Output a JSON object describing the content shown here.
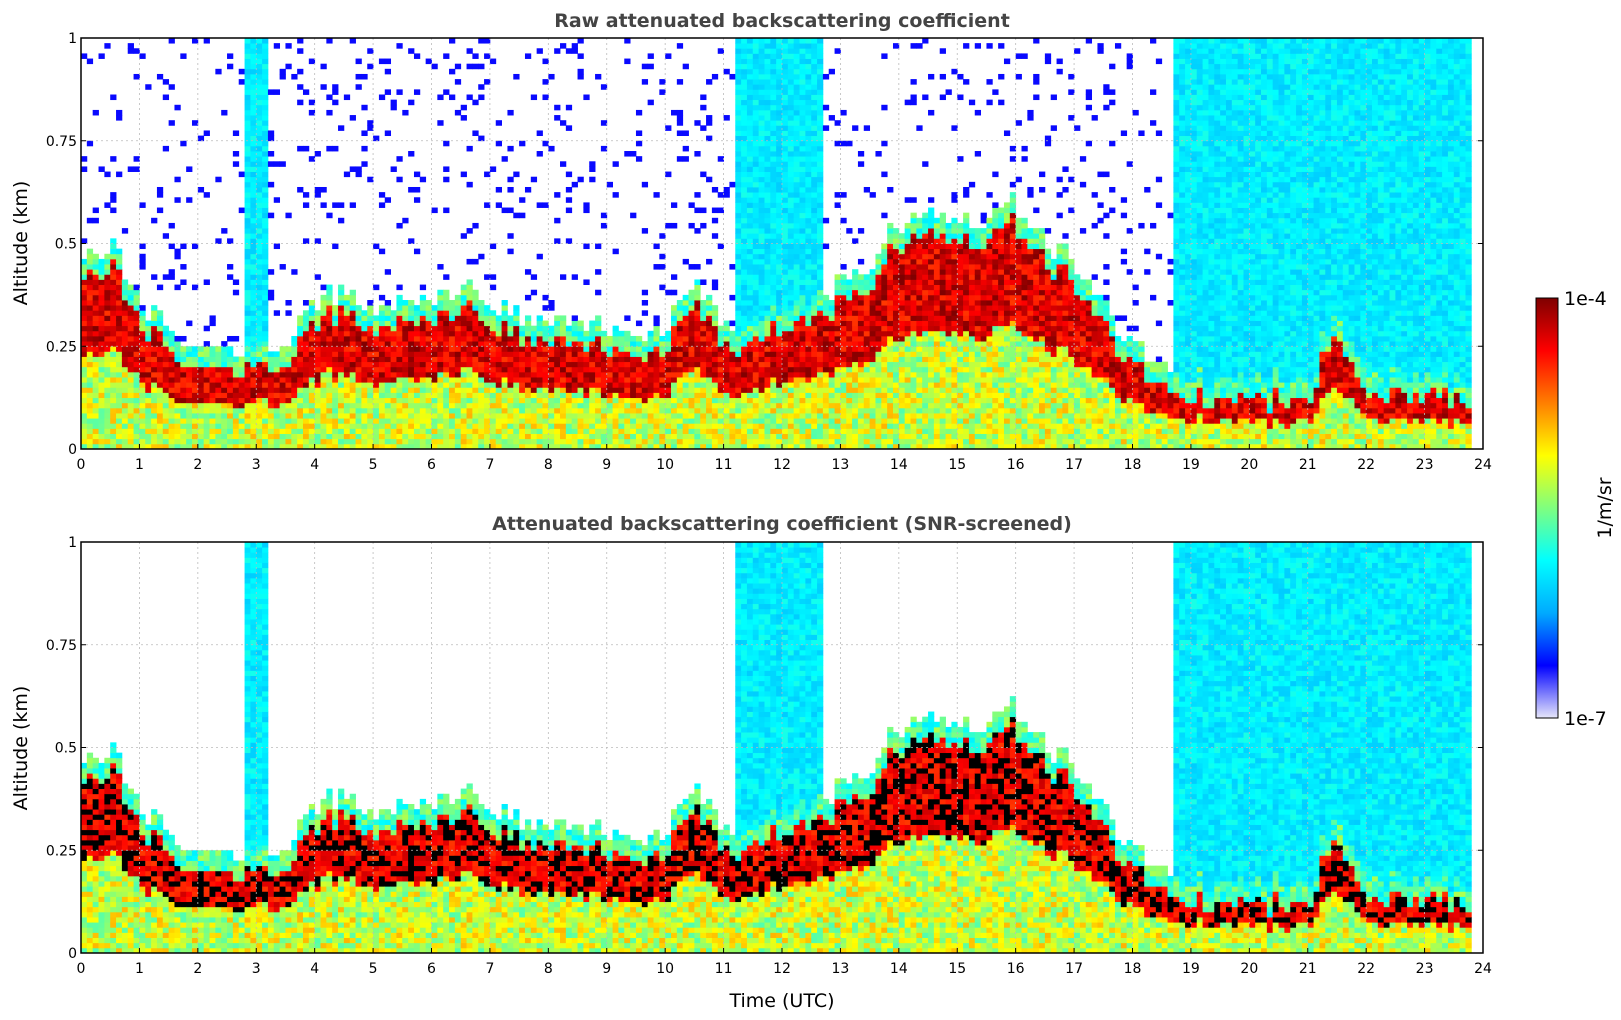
{
  "chart_data": [
    {
      "type": "heatmap",
      "title": "Raw attenuated backscattering coefficient",
      "xlabel": "",
      "ylabel": "Altitude (km)",
      "xlim": [
        0,
        24
      ],
      "ylim": [
        0,
        1
      ],
      "xticks": [
        "0",
        "1",
        "2",
        "3",
        "4",
        "5",
        "6",
        "7",
        "8",
        "9",
        "10",
        "11",
        "12",
        "13",
        "14",
        "15",
        "16",
        "17",
        "18",
        "19",
        "20",
        "21",
        "22",
        "23",
        "24"
      ],
      "yticks": [
        "0",
        "0.25",
        "0.5",
        "0.75",
        "1"
      ],
      "grid": true,
      "screened": false,
      "boundary_layer_top_km": {
        "time_utc": [
          0,
          0.5,
          1,
          1.5,
          2,
          2.5,
          3,
          3.5,
          4,
          4.5,
          5,
          5.5,
          6,
          6.5,
          7,
          7.5,
          8,
          8.5,
          9,
          9.5,
          10,
          10.5,
          11,
          11.5,
          12,
          12.5,
          13,
          13.5,
          14,
          14.5,
          15,
          15.5,
          16,
          16.5,
          17,
          17.5,
          18,
          18.5,
          19,
          19.5,
          20,
          20.5,
          21,
          21.5,
          22,
          22.5,
          23,
          23.5,
          23.8
        ],
        "altitude": [
          0.4,
          0.45,
          0.3,
          0.25,
          0.2,
          0.2,
          0.2,
          0.2,
          0.3,
          0.35,
          0.3,
          0.3,
          0.32,
          0.35,
          0.3,
          0.28,
          0.25,
          0.25,
          0.25,
          0.2,
          0.25,
          0.35,
          0.25,
          0.25,
          0.3,
          0.3,
          0.35,
          0.4,
          0.5,
          0.55,
          0.5,
          0.5,
          0.55,
          0.45,
          0.4,
          0.3,
          0.2,
          0.15,
          0.12,
          0.12,
          0.12,
          0.12,
          0.12,
          0.3,
          0.15,
          0.12,
          0.12,
          0.12,
          0.12
        ]
      }
    },
    {
      "type": "heatmap",
      "title": "Attenuated backscattering coefficient (SNR-screened)",
      "xlabel": "Time (UTC)",
      "ylabel": "Altitude (km)",
      "xlim": [
        0,
        24
      ],
      "ylim": [
        0,
        1
      ],
      "xticks": [
        "0",
        "1",
        "2",
        "3",
        "4",
        "5",
        "6",
        "7",
        "8",
        "9",
        "10",
        "11",
        "12",
        "13",
        "14",
        "15",
        "16",
        "17",
        "18",
        "19",
        "20",
        "21",
        "22",
        "23",
        "24"
      ],
      "yticks": [
        "0",
        "0.25",
        "0.5",
        "0.75",
        "1"
      ],
      "grid": true,
      "screened": true
    }
  ],
  "colorbar": {
    "label": "1/m/sr",
    "max_label": "1e-4",
    "min_label": "1e-7",
    "scale": "log",
    "colormap": "jet",
    "stops": [
      "#e6e6fa",
      "#0000ff",
      "#00aaff",
      "#00ffff",
      "#7fff7f",
      "#ffff00",
      "#ff7f00",
      "#ff0000",
      "#7f0000"
    ]
  },
  "colors": {
    "saturated_screened": "#000000",
    "grid": "#bbbbbb",
    "title": "#444444"
  }
}
